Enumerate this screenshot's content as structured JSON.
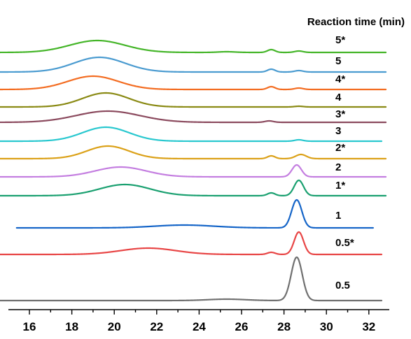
{
  "chart_data": {
    "type": "line",
    "title": "",
    "xlabel": "",
    "ylabel": "",
    "legend_title": "Reaction time (min)",
    "xlim": [
      15,
      33
    ],
    "x_ticks": [
      16,
      18,
      20,
      22,
      24,
      26,
      28,
      30,
      32
    ],
    "x_tick_labels": [
      "16",
      "18",
      "20",
      "22",
      "24",
      "26",
      "28",
      "30",
      "32"
    ],
    "grid": false,
    "series": [
      {
        "name": "5*",
        "color": "#44b528",
        "x_start": 14.2,
        "x_end": 32.8,
        "peaks": [
          {
            "x": 19.2,
            "height": 17,
            "width": 1.3
          },
          {
            "x": 25.3,
            "height": 1,
            "width": 0.4
          },
          {
            "x": 27.4,
            "height": 4,
            "width": 0.18
          },
          {
            "x": 28.7,
            "height": 2,
            "width": 0.2
          }
        ]
      },
      {
        "name": "5",
        "color": "#4a9bd0",
        "x_start": 14.2,
        "x_end": 32.8,
        "peaks": [
          {
            "x": 19.3,
            "height": 21,
            "width": 1.2
          },
          {
            "x": 27.4,
            "height": 4,
            "width": 0.18
          },
          {
            "x": 28.7,
            "height": 2,
            "width": 0.2
          }
        ]
      },
      {
        "name": "4*",
        "color": "#f36c21",
        "x_start": 14.2,
        "x_end": 32.8,
        "peaks": [
          {
            "x": 19.0,
            "height": 19,
            "width": 1.2
          },
          {
            "x": 27.4,
            "height": 4,
            "width": 0.18
          },
          {
            "x": 28.7,
            "height": 2,
            "width": 0.2
          }
        ]
      },
      {
        "name": "4",
        "color": "#8a8a14",
        "x_start": 14.6,
        "x_end": 32.8,
        "peaks": [
          {
            "x": 19.6,
            "height": 20,
            "width": 1.1
          },
          {
            "x": 28.7,
            "height": 1,
            "width": 0.2
          }
        ]
      },
      {
        "name": "3*",
        "color": "#8b4a5e",
        "x_start": 14.2,
        "x_end": 32.8,
        "peaks": [
          {
            "x": 19.7,
            "height": 16,
            "width": 1.5
          },
          {
            "x": 27.3,
            "height": 2,
            "width": 0.2
          }
        ]
      },
      {
        "name": "3",
        "color": "#29c8cf",
        "x_start": 14.2,
        "x_end": 32.6,
        "peaks": [
          {
            "x": 19.6,
            "height": 20,
            "width": 1.1
          },
          {
            "x": 28.7,
            "height": 2,
            "width": 0.2
          }
        ]
      },
      {
        "name": "2*",
        "color": "#dba118",
        "x_start": 14.2,
        "x_end": 32.8,
        "peaks": [
          {
            "x": 19.7,
            "height": 18,
            "width": 1.0
          },
          {
            "x": 27.4,
            "height": 4,
            "width": 0.18
          },
          {
            "x": 28.8,
            "height": 6,
            "width": 0.25
          }
        ]
      },
      {
        "name": "2",
        "color": "#c47ee0",
        "x_start": 14.6,
        "x_end": 32.8,
        "peaks": [
          {
            "x": 20.3,
            "height": 14,
            "width": 1.2
          },
          {
            "x": 28.6,
            "height": 17,
            "width": 0.22
          }
        ]
      },
      {
        "name": "1*",
        "color": "#1aa070",
        "x_start": 14.6,
        "x_end": 32.8,
        "peaks": [
          {
            "x": 20.5,
            "height": 16,
            "width": 1.2
          },
          {
            "x": 27.4,
            "height": 4,
            "width": 0.18
          },
          {
            "x": 28.7,
            "height": 22,
            "width": 0.22
          }
        ]
      },
      {
        "name": "1",
        "color": "#1565c8",
        "x_start": 15.4,
        "x_end": 32.2,
        "peaks": [
          {
            "x": 23.3,
            "height": 4,
            "width": 1.4
          },
          {
            "x": 28.6,
            "height": 40,
            "width": 0.24
          }
        ]
      },
      {
        "name": "0.5*",
        "color": "#e84545",
        "x_start": 14.6,
        "x_end": 32.6,
        "peaks": [
          {
            "x": 21.6,
            "height": 9,
            "width": 1.3
          },
          {
            "x": 27.4,
            "height": 3,
            "width": 0.18
          },
          {
            "x": 28.7,
            "height": 32,
            "width": 0.22
          }
        ]
      },
      {
        "name": "0.5",
        "color": "#707070",
        "x_start": 14.6,
        "x_end": 32.6,
        "peaks": [
          {
            "x": 25.3,
            "height": 2,
            "width": 0.9
          },
          {
            "x": 28.6,
            "height": 62,
            "width": 0.26
          }
        ]
      }
    ]
  }
}
